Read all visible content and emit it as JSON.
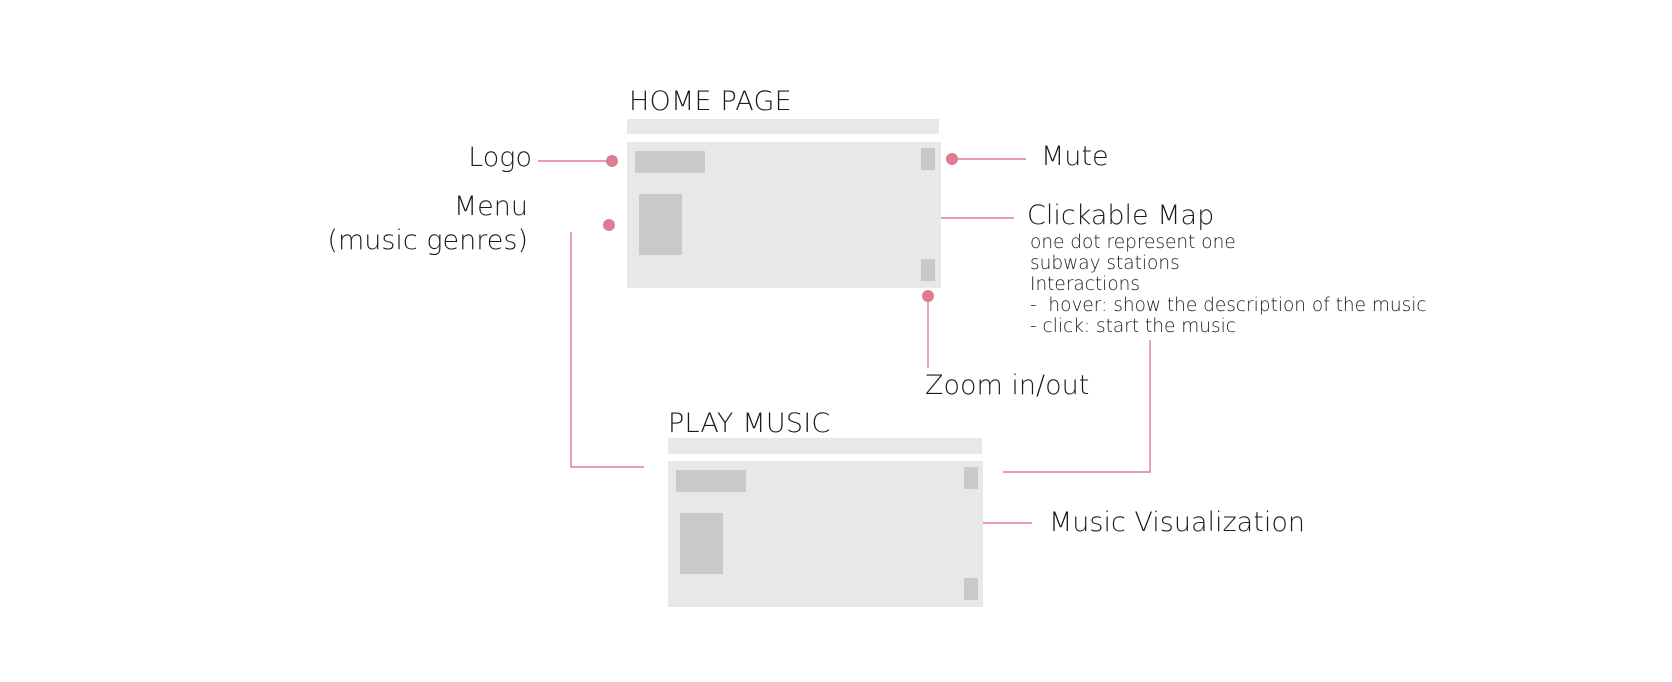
{
  "screens": {
    "home": {
      "title": "HOME PAGE"
    },
    "play": {
      "title": "PLAY MUSIC"
    }
  },
  "annotations": {
    "logo": "Logo",
    "menu_line1": "Menu",
    "menu_line2": "(music genres)",
    "mute": "Mute",
    "clickable_map": "Clickable Map",
    "clickable_map_desc": [
      "one dot represent one",
      "subway stations",
      "Interactions",
      "-  hover: show the description of the music",
      "- click: start the music"
    ],
    "zoom": "Zoom in/out",
    "music_visualization": "Music Visualization"
  },
  "colors": {
    "connector": "#e07c92",
    "frame": "#e8e8e8",
    "block": "#c9c9c9"
  }
}
